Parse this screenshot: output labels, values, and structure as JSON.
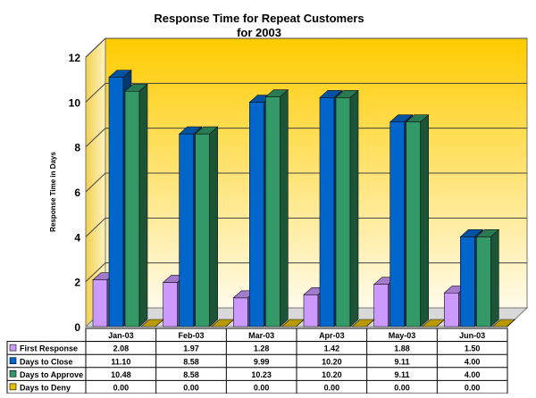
{
  "chart_data": {
    "type": "bar",
    "title_line1": "Response Time for Repeat Customers",
    "title_line2": "for 2003",
    "ylabel": "Response Time in Days",
    "ylim": [
      0,
      12
    ],
    "yticks": [
      "0",
      "2",
      "4",
      "6",
      "8",
      "10",
      "12"
    ],
    "categories": [
      "Jan-03",
      "Feb-03",
      "Mar-03",
      "Apr-03",
      "May-03",
      "Jun-03"
    ],
    "series": [
      {
        "name": "First Response",
        "color": "#cc99ff",
        "values": [
          2.08,
          1.97,
          1.28,
          1.42,
          1.88,
          1.5
        ],
        "labels": [
          "2.08",
          "1.97",
          "1.28",
          "1.42",
          "1.88",
          "1.50"
        ]
      },
      {
        "name": "Days to Close",
        "color": "#0066cc",
        "values": [
          11.1,
          8.58,
          9.99,
          10.2,
          9.11,
          4.0
        ],
        "labels": [
          "11.10",
          "8.58",
          "9.99",
          "10.20",
          "9.11",
          "4.00"
        ]
      },
      {
        "name": "Days to Approve",
        "color": "#339966",
        "values": [
          10.48,
          8.58,
          10.23,
          10.2,
          9.11,
          4.0
        ],
        "labels": [
          "10.48",
          "8.58",
          "10.23",
          "10.20",
          "9.11",
          "4.00"
        ]
      },
      {
        "name": "Days to Deny",
        "color": "#e6c000",
        "values": [
          0,
          0,
          0,
          0,
          0,
          0
        ],
        "labels": [
          "0.00",
          "0.00",
          "0.00",
          "0.00",
          "0.00",
          "0.00"
        ]
      }
    ]
  }
}
